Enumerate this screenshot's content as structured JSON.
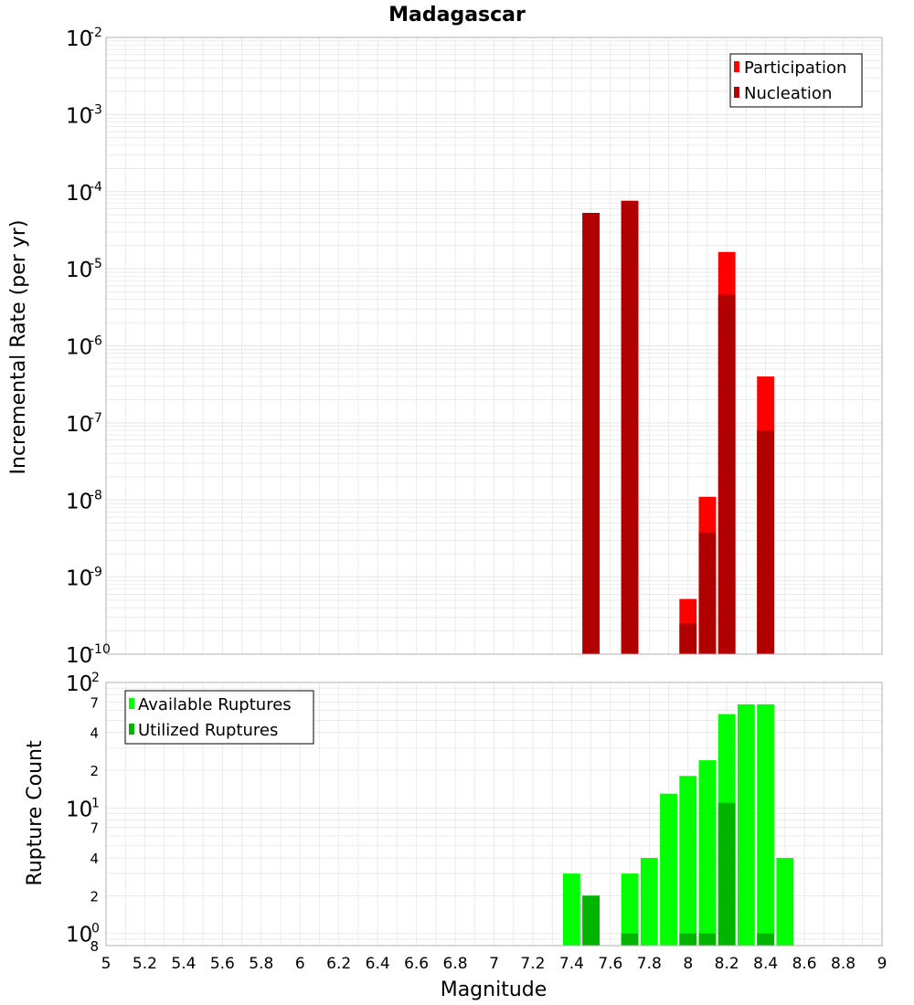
{
  "chart_data": [
    {
      "type": "bar",
      "title": "Madagascar",
      "xlabel": "",
      "ylabel": "Incremental Rate (per yr)",
      "yscale": "log",
      "ylim": [
        1e-10,
        0.01
      ],
      "xlim": [
        5,
        9
      ],
      "bar_width": 0.1,
      "y_ticks": [
        {
          "base": "10",
          "exp": "-10",
          "value": 1e-10
        },
        {
          "base": "10",
          "exp": "-9",
          "value": 1e-09
        },
        {
          "base": "10",
          "exp": "-8",
          "value": 1e-08
        },
        {
          "base": "10",
          "exp": "-7",
          "value": 1e-07
        },
        {
          "base": "10",
          "exp": "-6",
          "value": 1e-06
        },
        {
          "base": "10",
          "exp": "-5",
          "value": 1e-05
        },
        {
          "base": "10",
          "exp": "-4",
          "value": 0.0001
        },
        {
          "base": "10",
          "exp": "-3",
          "value": 0.001
        },
        {
          "base": "10",
          "exp": "-2",
          "value": 0.01
        }
      ],
      "legend": {
        "position": "top-right",
        "entries": [
          "Participation",
          "Nucleation"
        ]
      },
      "series": [
        {
          "name": "Participation",
          "color": "#ff0000",
          "x": [
            7.5,
            7.7,
            8.0,
            8.1,
            8.2,
            8.4
          ],
          "values": [
            5.3e-05,
            7.6e-05,
            5.2e-10,
            1.1e-08,
            1.65e-05,
            4e-07
          ]
        },
        {
          "name": "Nucleation",
          "color": "#b00000",
          "x": [
            7.5,
            7.7,
            8.0,
            8.1,
            8.2,
            8.4
          ],
          "values": [
            5.3e-05,
            7.6e-05,
            2.5e-10,
            3.8e-09,
            4.6e-06,
            8e-08
          ]
        }
      ]
    },
    {
      "type": "bar",
      "title": "",
      "xlabel": "Magnitude",
      "ylabel": "Rupture Count",
      "yscale": "log",
      "ylim": [
        0.8,
        100
      ],
      "xlim": [
        5,
        9
      ],
      "bar_width": 0.1,
      "x_ticks": [
        "5",
        "5.2",
        "5.4",
        "5.6",
        "5.8",
        "6",
        "6.2",
        "6.4",
        "6.6",
        "6.8",
        "7",
        "7.2",
        "7.4",
        "7.6",
        "7.8",
        "8",
        "8.2",
        "8.4",
        "8.6",
        "8.8",
        "9"
      ],
      "y_ticks": [
        {
          "base": "10",
          "exp": "0",
          "value": 1
        },
        {
          "base": "10",
          "exp": "1",
          "value": 10
        },
        {
          "base": "10",
          "exp": "2",
          "value": 100
        }
      ],
      "y_minor_ticks": [
        {
          "label": "8",
          "value": 0.8
        },
        {
          "label": "2",
          "value": 2
        },
        {
          "label": "4",
          "value": 4
        },
        {
          "label": "7",
          "value": 7
        },
        {
          "label": "2",
          "value": 20
        },
        {
          "label": "4",
          "value": 40
        },
        {
          "label": "7",
          "value": 70
        }
      ],
      "legend": {
        "position": "top-left",
        "entries": [
          "Available Ruptures",
          "Utilized Ruptures"
        ]
      },
      "series": [
        {
          "name": "Available Ruptures",
          "color": "#00ff00",
          "x": [
            7.4,
            7.5,
            7.7,
            7.8,
            7.9,
            8.0,
            8.1,
            8.2,
            8.3,
            8.4,
            8.5
          ],
          "values": [
            3,
            2,
            3,
            4,
            13,
            18,
            24,
            56,
            67,
            67,
            4
          ]
        },
        {
          "name": "Utilized Ruptures",
          "color": "#00b400",
          "x": [
            7.5,
            7.7,
            8.0,
            8.1,
            8.2,
            8.4
          ],
          "values": [
            2,
            1,
            1,
            1,
            11,
            1
          ]
        }
      ]
    }
  ]
}
